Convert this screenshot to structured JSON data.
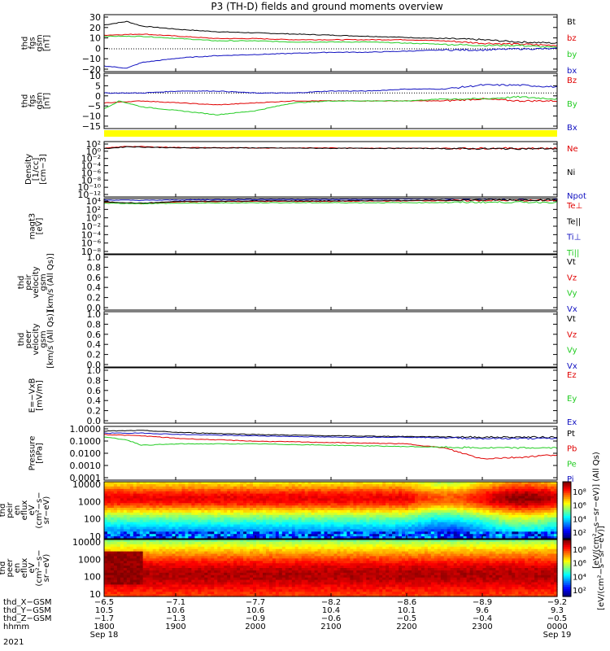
{
  "title": "P3 (TH-D) fields and ground moments overview",
  "colors": {
    "black": "#000000",
    "red": "#e00000",
    "green": "#22cc22",
    "blue": "#1010c0",
    "yellow": "#ffff00"
  },
  "panels": [
    {
      "id": "fgs-gsm",
      "ylabel": [
        "thd",
        "fgs",
        "gsm",
        "[nT]"
      ],
      "ticks": [
        "30",
        "20",
        "10",
        "0",
        "−10",
        "−20"
      ],
      "legend": [
        {
          "text": "Bt",
          "color": "#000000"
        },
        {
          "text": "bz",
          "color": "#e00000"
        },
        {
          "text": "by",
          "color": "#22cc22"
        },
        {
          "text": "bx",
          "color": "#1010c0"
        }
      ]
    },
    {
      "id": "fgs-dsl",
      "ylabel": [
        "thd",
        "fgs",
        "gsm",
        "[nT]"
      ],
      "ticks": [
        "10",
        "5",
        "0",
        "−5",
        "−10",
        "−15"
      ],
      "legend": [
        {
          "text": "Bz",
          "color": "#e00000"
        },
        {
          "text": "By",
          "color": "#22cc22"
        },
        {
          "text": "Bx",
          "color": "#1010c0"
        }
      ]
    },
    {
      "id": "density",
      "ylabel": [
        "Density",
        "[1/cc]",
        "[cm−3]"
      ],
      "ticks": [
        "10²",
        "10⁰",
        "10⁻²",
        "10⁻⁴",
        "10⁻⁶",
        "10⁻⁸",
        "10⁻¹⁰",
        "10⁻¹²"
      ],
      "legend": [
        {
          "text": "Ne",
          "color": "#e00000"
        },
        {
          "text": "Ni",
          "color": "#000000"
        },
        {
          "text": "Npot",
          "color": "#1010c0"
        }
      ]
    },
    {
      "id": "temp",
      "ylabel": [
        "magt3",
        "[eV]"
      ],
      "ticks": [
        "10⁴",
        "10²",
        "10⁰",
        "10⁻²",
        "10⁻⁴",
        "10⁻⁶",
        "10⁻⁸"
      ],
      "legend": [
        {
          "text": "Te⊥",
          "color": "#e00000"
        },
        {
          "text": "Te||",
          "color": "#000000"
        },
        {
          "text": "Ti⊥",
          "color": "#1010c0"
        },
        {
          "text": "Ti||",
          "color": "#22cc22"
        }
      ]
    },
    {
      "id": "peir-vel",
      "ylabel": [
        "thd",
        "peir",
        "velocity",
        "gsm",
        "[km/s (All Qs)]"
      ],
      "ticks": [
        "1.0",
        "0.8",
        "0.6",
        "0.4",
        "0.2",
        "0.0"
      ],
      "legend": [
        {
          "text": "Vt",
          "color": "#000000"
        },
        {
          "text": "Vz",
          "color": "#e00000"
        },
        {
          "text": "Vy",
          "color": "#22cc22"
        },
        {
          "text": "Vx",
          "color": "#1010c0"
        }
      ]
    },
    {
      "id": "peer-vel",
      "ylabel": [
        "thd",
        "peer",
        "velocity",
        "gsm",
        "[km/s (All Qs)]"
      ],
      "ticks": [
        "1.0",
        "0.8",
        "0.6",
        "0.4",
        "0.2",
        "0.0"
      ],
      "legend": [
        {
          "text": "Vt",
          "color": "#000000"
        },
        {
          "text": "Vz",
          "color": "#e00000"
        },
        {
          "text": "Vy",
          "color": "#22cc22"
        },
        {
          "text": "Vx",
          "color": "#1010c0"
        }
      ]
    },
    {
      "id": "efield",
      "ylabel": [
        "E=−VxB",
        "[mV/m]"
      ],
      "ticks": [
        "1.0",
        "0.8",
        "0.6",
        "0.4",
        "0.2",
        "0.0"
      ],
      "legend": [
        {
          "text": "Ez",
          "color": "#e00000"
        },
        {
          "text": "Ey",
          "color": "#22cc22"
        },
        {
          "text": "Ex",
          "color": "#1010c0"
        }
      ]
    },
    {
      "id": "pressure",
      "ylabel": [
        "Pressure",
        "[nPa]"
      ],
      "ticks": [
        "1.0000",
        "0.1000",
        "0.0100",
        "0.0010",
        "0.0001"
      ],
      "legend": [
        {
          "text": "Pt",
          "color": "#000000"
        },
        {
          "text": "Pb",
          "color": "#e00000"
        },
        {
          "text": "Pe",
          "color": "#22cc22"
        },
        {
          "text": "Pi",
          "color": "#1010c0"
        }
      ]
    },
    {
      "id": "peir-en",
      "ylabel": [
        "thd",
        "peir",
        "en",
        "eflux",
        "eV",
        "(cm²−s−",
        "sr−eV)"
      ],
      "ticks": [
        "10000",
        "1000",
        "100",
        "10"
      ],
      "colorbar_ticks": [
        "10⁸",
        "10⁶",
        "10⁴",
        "10²"
      ],
      "colorbar_label": "[eV/(cm²−s−sr−eV)] (All Qs)"
    },
    {
      "id": "peer-en",
      "ylabel": [
        "thd",
        "peer",
        "en",
        "eflux",
        "eV",
        "(cm²−s−",
        "sr−eV)"
      ],
      "ticks": [
        "10000",
        "1000",
        "100",
        "10"
      ],
      "colorbar_ticks": [
        "10⁸",
        "10⁶",
        "10⁴",
        "10²"
      ],
      "colorbar_label": "[eV/(cm²−s−sr−eV)]"
    }
  ],
  "x_axis": {
    "row_labels": [
      "thd_X−GSM",
      "thd_Y−GSM",
      "thd_Z−GSM",
      "hhmm",
      "2021"
    ],
    "columns": [
      {
        "x": "−6.5",
        "y": "10.5",
        "z": "−1.7",
        "hhmm": "1800",
        "date": "Sep 18"
      },
      {
        "x": "−7.1",
        "y": "10.6",
        "z": "−1.3",
        "hhmm": "1900",
        "date": ""
      },
      {
        "x": "−7.7",
        "y": "10.6",
        "z": "−0.9",
        "hhmm": "2000",
        "date": ""
      },
      {
        "x": "−8.2",
        "y": "10.4",
        "z": "−0.6",
        "hhmm": "2100",
        "date": ""
      },
      {
        "x": "−8.6",
        "y": "10.1",
        "z": "−0.5",
        "hhmm": "2200",
        "date": ""
      },
      {
        "x": "−8.9",
        "y": "9.6",
        "z": "−0.4",
        "hhmm": "2300",
        "date": ""
      },
      {
        "x": "−9.2",
        "y": "9.3",
        "z": "−0.5",
        "hhmm": "0000",
        "date": "Sep 19"
      }
    ]
  },
  "chart_data": {
    "type": "line",
    "title": "P3 (TH-D) fields and ground moments overview",
    "x_ticks": [
      "1800",
      "1900",
      "2000",
      "2100",
      "2200",
      "2300",
      "0000"
    ],
    "x_range_hours": [
      18,
      24
    ],
    "panels": [
      {
        "id": "fgs-gsm",
        "ylim": [
          -20,
          30
        ],
        "series": [
          {
            "name": "Bt",
            "x": [
              18.0,
              18.3,
              18.5,
              19.0,
              19.5,
              20.0,
              20.5,
              21.0,
              21.5,
              22.0,
              22.5,
              23.0,
              23.5,
              24.0
            ],
            "values": [
              21,
              24,
              20,
              17,
              15,
              14,
              13,
              12,
              11,
              10,
              9,
              8,
              6,
              5
            ]
          },
          {
            "name": "bz",
            "x": [
              18.0,
              18.5,
              19.0,
              19.5,
              20.0,
              20.5,
              21.0,
              21.5,
              22.0,
              22.5,
              23.0,
              23.5,
              24.0
            ],
            "values": [
              12,
              13,
              11,
              9,
              9,
              8,
              8,
              8,
              8,
              7,
              5,
              4,
              3
            ]
          },
          {
            "name": "by",
            "x": [
              18.0,
              18.5,
              19.0,
              19.5,
              20.0,
              20.5,
              21.0,
              21.5,
              22.0,
              22.5,
              23.0,
              23.5,
              24.0
            ],
            "values": [
              11,
              11,
              9,
              7,
              7,
              6,
              6,
              6,
              5,
              4,
              3,
              3,
              1
            ]
          },
          {
            "name": "bx",
            "x": [
              18.0,
              18.3,
              18.5,
              19.0,
              19.5,
              20.0,
              20.5,
              21.0,
              21.5,
              22.0,
              22.5,
              23.0,
              23.5,
              24.0
            ],
            "values": [
              -15,
              -17,
              -12,
              -8,
              -6,
              -5,
              -4,
              -3,
              -3,
              -2,
              -1,
              -1,
              0,
              0
            ]
          }
        ]
      },
      {
        "id": "fgs-dsl",
        "ylim": [
          -18,
          10
        ],
        "series": [
          {
            "name": "Bz",
            "x": [
              18.0,
              18.5,
              19.0,
              19.5,
              20.0,
              20.5,
              21.0,
              21.5,
              22.0,
              22.5,
              23.0,
              23.5,
              24.0
            ],
            "values": [
              -5,
              -4,
              -5,
              -6,
              -5,
              -4,
              -4,
              -4,
              -4,
              -4,
              -3,
              -4,
              -4
            ]
          },
          {
            "name": "By",
            "x": [
              18.0,
              18.2,
              18.5,
              19.0,
              19.5,
              20.0,
              20.5,
              21.0,
              21.5,
              22.0,
              22.5,
              23.0,
              23.5,
              24.0
            ],
            "values": [
              -8,
              -4,
              -7,
              -9,
              -11,
              -9,
              -5,
              -4,
              -4,
              -4,
              -3,
              -3,
              -2,
              -3
            ]
          },
          {
            "name": "Bx",
            "x": [
              18.0,
              18.5,
              19.0,
              19.5,
              20.0,
              20.5,
              21.0,
              21.5,
              22.0,
              22.5,
              23.0,
              23.5,
              24.0
            ],
            "values": [
              0,
              0,
              1,
              1,
              0,
              0,
              1,
              1,
              2,
              2,
              4,
              4,
              3
            ]
          }
        ]
      },
      {
        "id": "density",
        "ylim": [
          -12,
          2
        ],
        "yscale": "log",
        "series": [
          {
            "name": "Ne",
            "x": [
              18.0,
              18.3,
              19.0,
              20.0,
              21.0,
              22.0,
              23.0,
              24.0
            ],
            "values": [
              0.3,
              0.8,
              0.5,
              0.4,
              0.4,
              0.3,
              0.3,
              0.3
            ]
          },
          {
            "name": "Ni",
            "x": [
              18.0,
              18.3,
              19.0,
              20.0,
              21.0,
              22.0,
              23.0,
              24.0
            ],
            "values": [
              0.2,
              0.7,
              0.4,
              0.4,
              0.3,
              0.3,
              0.2,
              0.2
            ]
          }
        ]
      },
      {
        "id": "temp",
        "ylim": [
          -8,
          4
        ],
        "yscale": "log",
        "series": [
          {
            "name": "Te⊥",
            "x": [
              18.0,
              18.5,
              19.0,
              20.0,
              21.0,
              22.0,
              23.0,
              24.0
            ],
            "values": [
              3.2,
              2.9,
              3.3,
              3.4,
              3.4,
              3.5,
              3.6,
              3.6
            ]
          },
          {
            "name": "Te||",
            "x": [
              18.0,
              18.5,
              19.0,
              20.0,
              21.0,
              22.0,
              23.0,
              24.0
            ],
            "values": [
              3.3,
              3.0,
              3.4,
              3.5,
              3.5,
              3.6,
              3.7,
              3.7
            ]
          },
          {
            "name": "Ti⊥",
            "x": [
              18.0,
              18.5,
              19.0,
              20.0,
              21.0,
              22.0,
              23.0,
              24.0
            ],
            "values": [
              3.7,
              3.6,
              3.7,
              3.8,
              3.8,
              3.9,
              4.0,
              4.0
            ]
          },
          {
            "name": "Ti||",
            "x": [
              18.0,
              18.5,
              19.0,
              20.0,
              21.0,
              22.0,
              23.0,
              24.0
            ],
            "values": [
              3.0,
              2.9,
              3.0,
              3.1,
              3.1,
              3.1,
              3.2,
              3.2
            ]
          }
        ]
      },
      {
        "id": "peir-vel",
        "ylim": [
          0,
          1
        ],
        "series": []
      },
      {
        "id": "peer-vel",
        "ylim": [
          0,
          1
        ],
        "series": []
      },
      {
        "id": "efield",
        "ylim": [
          0,
          1
        ],
        "series": []
      },
      {
        "id": "pressure",
        "ylim": [
          -4,
          0
        ],
        "yscale": "log",
        "series": [
          {
            "name": "Pt",
            "x": [
              18.0,
              18.5,
              19.0,
              20.0,
              21.0,
              22.0,
              23.0,
              24.0
            ],
            "values": [
              -0.35,
              -0.3,
              -0.45,
              -0.6,
              -0.7,
              -0.75,
              -0.8,
              -0.8
            ]
          },
          {
            "name": "Pb",
            "x": [
              18.0,
              18.5,
              19.0,
              20.0,
              21.0,
              22.0,
              22.5,
              23.0,
              23.5,
              24.0
            ],
            "values": [
              -0.6,
              -0.7,
              -0.9,
              -1.1,
              -1.2,
              -1.3,
              -1.6,
              -2.4,
              -2.3,
              -2.1
            ]
          },
          {
            "name": "Pe",
            "x": [
              18.0,
              18.3,
              18.5,
              19.0,
              20.0,
              21.0,
              22.0,
              23.0,
              24.0
            ],
            "values": [
              -0.8,
              -1.0,
              -1.4,
              -1.3,
              -1.3,
              -1.4,
              -1.5,
              -1.6,
              -1.6
            ]
          },
          {
            "name": "Pi",
            "x": [
              18.0,
              18.5,
              19.0,
              20.0,
              21.0,
              22.0,
              23.0,
              24.0
            ],
            "values": [
              -0.5,
              -0.5,
              -0.6,
              -0.7,
              -0.8,
              -0.8,
              -0.9,
              -0.9
            ]
          }
        ]
      },
      {
        "id": "peir-en",
        "type": "heatmap",
        "ylim": [
          5,
          30000
        ],
        "yscale": "log",
        "zscale": "log"
      },
      {
        "id": "peer-en",
        "type": "heatmap",
        "ylim": [
          5,
          30000
        ],
        "yscale": "log",
        "zscale": "log"
      }
    ]
  }
}
